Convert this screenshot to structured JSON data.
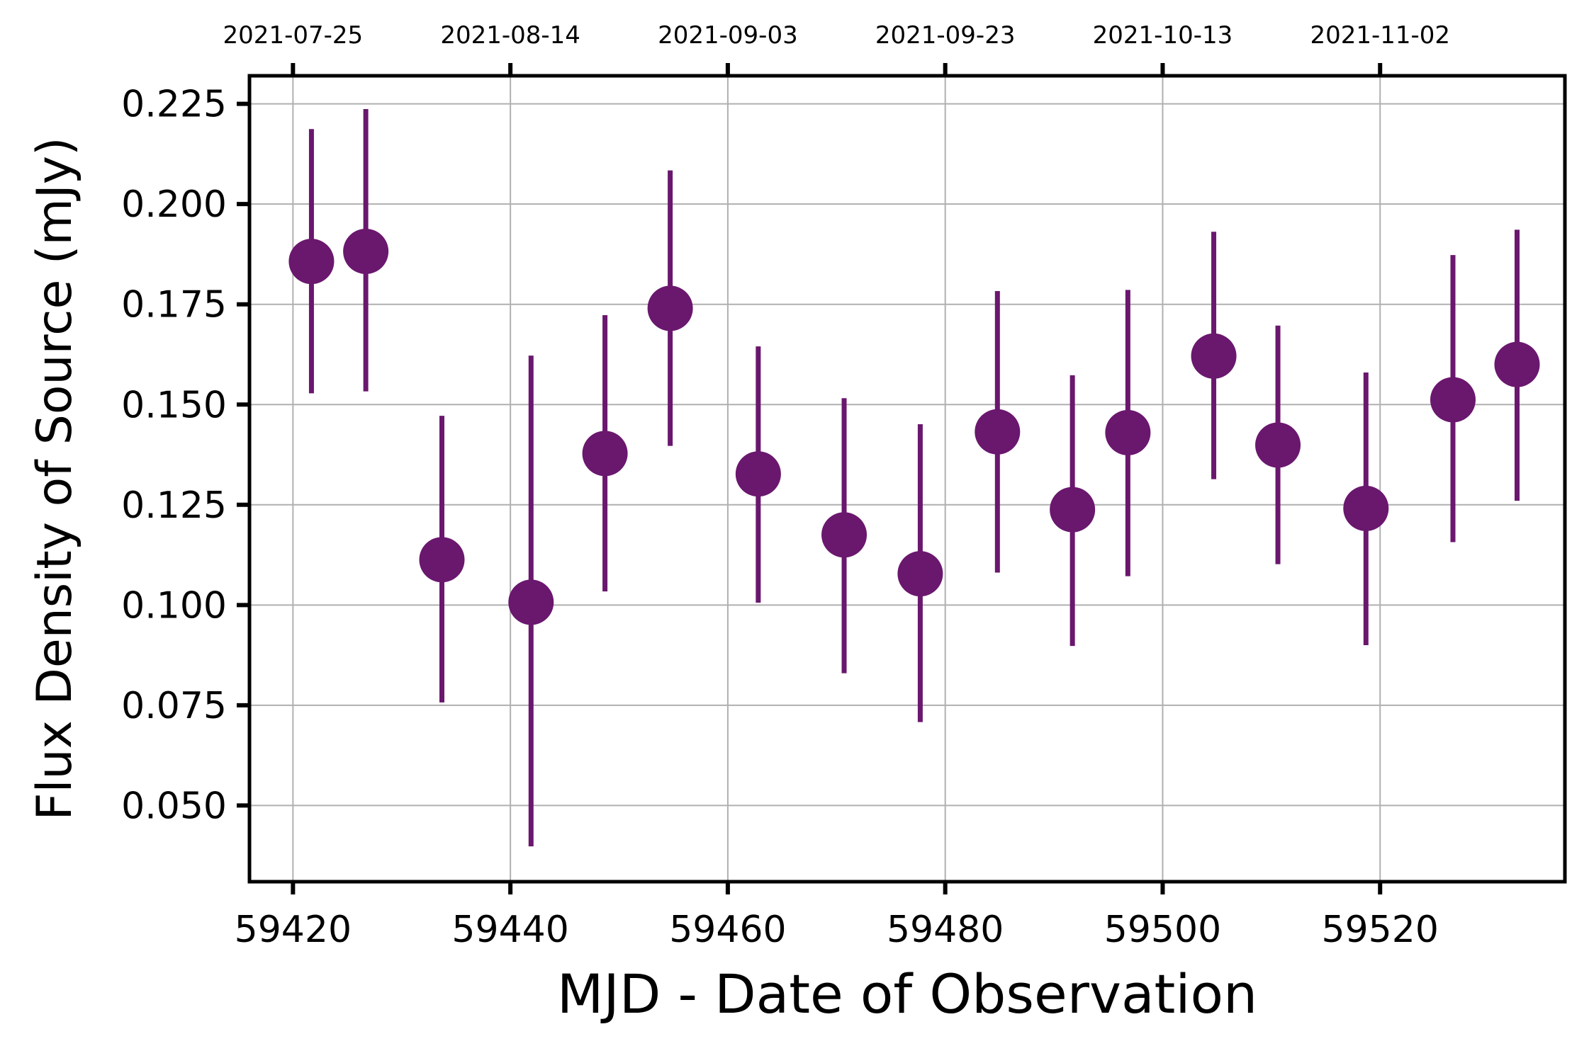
{
  "chart_data": {
    "type": "scatter",
    "title": "",
    "xlabel": "MJD - Date of Observation",
    "ylabel": "Flux Density of Source (mJy)",
    "xlim": [
      59416,
      59537
    ],
    "ylim": [
      0.031,
      0.232
    ],
    "xticks": [
      59420,
      59440,
      59460,
      59480,
      59500,
      59520
    ],
    "yticks": [
      0.05,
      0.075,
      0.1,
      0.125,
      0.15,
      0.175,
      0.2,
      0.225
    ],
    "ytick_labels": [
      "0.050",
      "0.075",
      "0.100",
      "0.125",
      "0.150",
      "0.175",
      "0.200",
      "0.225"
    ],
    "top_axis": {
      "ticks": [
        59420,
        59440,
        59460,
        59480,
        59500,
        59520
      ],
      "labels": [
        "2021-07-25",
        "2021-08-14",
        "2021-09-03",
        "2021-09-23",
        "2021-10-13",
        "2021-11-02"
      ]
    },
    "grid": true,
    "color": "#6a176e",
    "series": [
      {
        "x": [
          59421.7,
          59426.7,
          59433.7,
          59441.9,
          59448.7,
          59454.7,
          59462.8,
          59470.7,
          59477.7,
          59484.8,
          59491.7,
          59496.8,
          59504.7,
          59510.6,
          59518.7,
          59526.7,
          59532.6
        ],
        "y": [
          0.1857,
          0.1882,
          0.1113,
          0.1007,
          0.1378,
          0.174,
          0.1327,
          0.1175,
          0.1078,
          0.1432,
          0.1238,
          0.143,
          0.1621,
          0.1399,
          0.1241,
          0.1512,
          0.16
        ],
        "yerr_low": [
          0.1528,
          0.1533,
          0.0757,
          0.0398,
          0.1034,
          0.1397,
          0.1006,
          0.083,
          0.0708,
          0.1081,
          0.0898,
          0.1072,
          0.1314,
          0.1102,
          0.09,
          0.1157,
          0.126
        ],
        "yerr_high": [
          0.2187,
          0.2237,
          0.1472,
          0.1622,
          0.1723,
          0.2084,
          0.1645,
          0.1516,
          0.1451,
          0.1783,
          0.1573,
          0.1786,
          0.1931,
          0.1697,
          0.158,
          0.1873,
          0.1936
        ]
      }
    ]
  }
}
